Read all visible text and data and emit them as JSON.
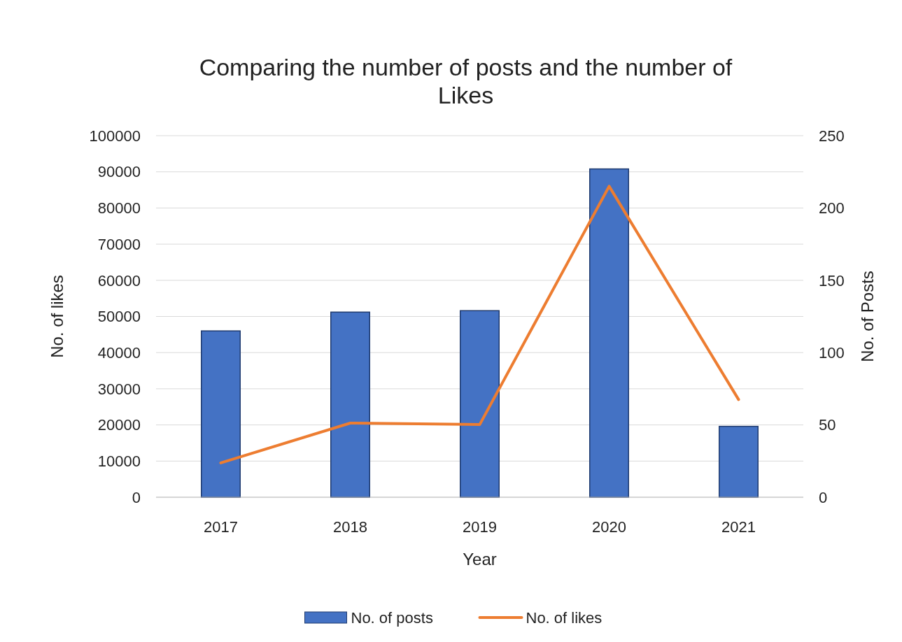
{
  "chart_data": {
    "type": "bar",
    "title": "Comparing the number of posts and the number of Likes",
    "xlabel": "Year",
    "ylabel": "No. of likes",
    "y2label": "No. of Posts",
    "categories": [
      "2017",
      "2018",
      "2019",
      "2020",
      "2021"
    ],
    "series": [
      {
        "name": "No. of posts",
        "axis": "y2",
        "color": "#4472c4",
        "values": [
          115,
          128,
          129,
          227,
          49
        ]
      },
      {
        "name": "No. of likes",
        "type": "line",
        "axis": "y",
        "color": "#ed7d31",
        "values": [
          9500,
          20500,
          20100,
          86000,
          27000
        ]
      }
    ],
    "ylim": [
      0,
      100000
    ],
    "yticks": [
      0,
      10000,
      20000,
      30000,
      40000,
      50000,
      60000,
      70000,
      80000,
      90000,
      100000
    ],
    "y2lim": [
      0,
      250
    ],
    "y2ticks": [
      0,
      50,
      100,
      150,
      200,
      250
    ],
    "grid": "y",
    "legend": "bottom",
    "marker": "none",
    "line_style": "solid"
  }
}
